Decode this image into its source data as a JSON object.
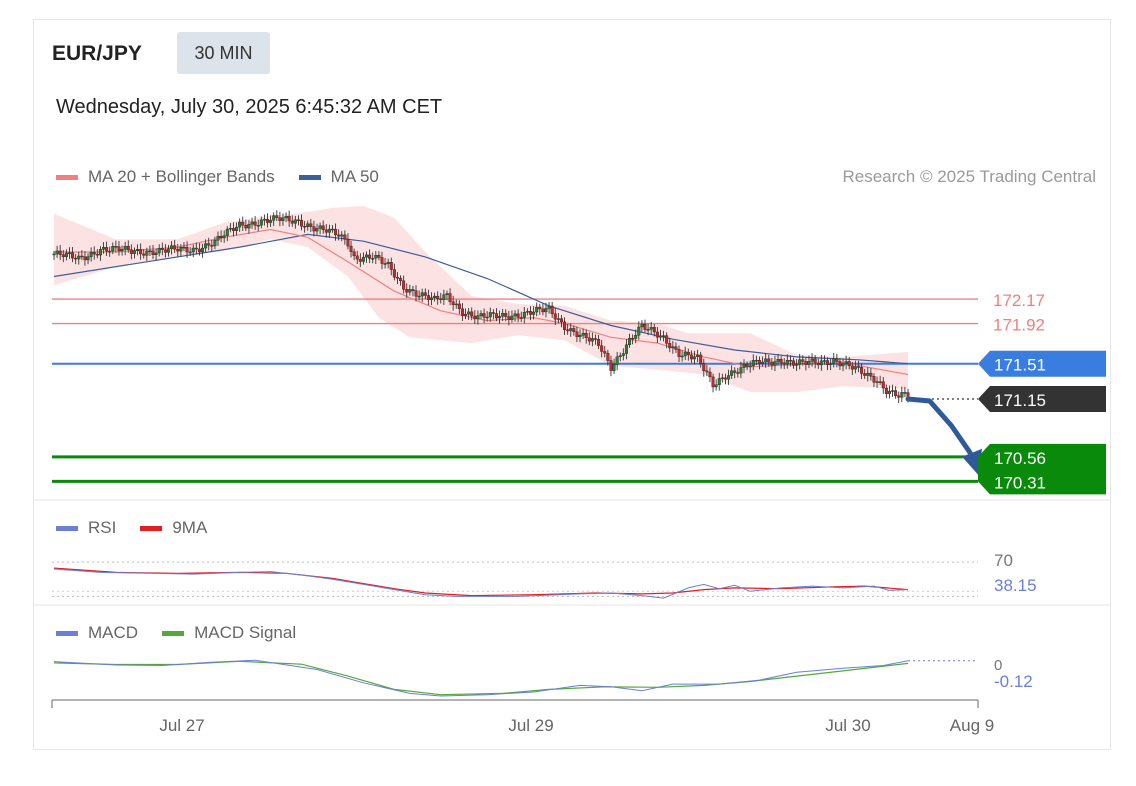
{
  "header": {
    "symbol": "EUR/JPY",
    "timeframe": "30 MIN",
    "datetime": "Wednesday, July 30, 2025 6:45:32 AM CET",
    "credit": "Research © 2025 Trading Central"
  },
  "colors": {
    "ma20": "#f08080",
    "band": "#fde0e2",
    "ma50": "#3a5f9a",
    "resistance": "#f08080",
    "pivot": "#3a7de0",
    "support": "#0a8a0a",
    "current": "#333333",
    "rsi": "#6b7fd7",
    "rsi_ma": "#e02020",
    "macd": "#6b7fd7",
    "macd_signal": "#55a83a",
    "arrow": "#2f5a9a"
  },
  "chart_data": [
    {
      "type": "candlestick",
      "title": "EUR/JPY 30 MIN",
      "legend": [
        "MA 20 + Bollinger Bands",
        "MA 50"
      ],
      "ylim": [
        170.15,
        173.15
      ],
      "x_ticks": [
        "Jul 27",
        "Jul 29",
        "Jul 30",
        "Aug 9"
      ],
      "close_path": [
        [
          0,
          172.63
        ],
        [
          8,
          172.58
        ],
        [
          15,
          172.68
        ],
        [
          25,
          172.66
        ],
        [
          35,
          172.66
        ],
        [
          45,
          172.68
        ],
        [
          52,
          172.75
        ],
        [
          60,
          172.93
        ],
        [
          66,
          172.96
        ],
        [
          73,
          172.98
        ],
        [
          79,
          172.97
        ],
        [
          84,
          172.9
        ],
        [
          88,
          172.86
        ],
        [
          92,
          172.82
        ],
        [
          95,
          172.75
        ],
        [
          97,
          172.6
        ],
        [
          103,
          172.6
        ],
        [
          108,
          172.5
        ],
        [
          113,
          172.3
        ],
        [
          118,
          172.22
        ],
        [
          123,
          172.15
        ],
        [
          127,
          172.2
        ],
        [
          132,
          172.05
        ],
        [
          137,
          171.98
        ],
        [
          145,
          172.0
        ],
        [
          152,
          172.02
        ],
        [
          160,
          172.06
        ],
        [
          165,
          171.9
        ],
        [
          170,
          171.8
        ],
        [
          176,
          171.7
        ],
        [
          180,
          171.48
        ],
        [
          186,
          171.75
        ],
        [
          190,
          171.88
        ],
        [
          197,
          171.78
        ],
        [
          202,
          171.62
        ],
        [
          208,
          171.55
        ],
        [
          213,
          171.3
        ],
        [
          217,
          171.4
        ],
        [
          222,
          171.45
        ],
        [
          228,
          171.53
        ],
        [
          235,
          171.55
        ],
        [
          240,
          171.5
        ],
        [
          247,
          171.53
        ],
        [
          252,
          171.55
        ],
        [
          257,
          171.48
        ],
        [
          262,
          171.4
        ],
        [
          266,
          171.35
        ],
        [
          269,
          171.25
        ],
        [
          273,
          171.18
        ],
        [
          276,
          171.18
        ]
      ],
      "ma20": [
        [
          0,
          172.65
        ],
        [
          20,
          172.65
        ],
        [
          40,
          172.7
        ],
        [
          55,
          172.8
        ],
        [
          70,
          172.88
        ],
        [
          82,
          172.8
        ],
        [
          95,
          172.55
        ],
        [
          110,
          172.25
        ],
        [
          125,
          172.05
        ],
        [
          140,
          171.95
        ],
        [
          155,
          171.98
        ],
        [
          165,
          171.92
        ],
        [
          180,
          171.78
        ],
        [
          195,
          171.72
        ],
        [
          210,
          171.58
        ],
        [
          225,
          171.48
        ],
        [
          240,
          171.5
        ],
        [
          255,
          171.52
        ],
        [
          276,
          171.4
        ]
      ],
      "ma50": [
        [
          0,
          172.4
        ],
        [
          30,
          172.55
        ],
        [
          60,
          172.7
        ],
        [
          82,
          172.83
        ],
        [
          100,
          172.76
        ],
        [
          120,
          172.6
        ],
        [
          140,
          172.38
        ],
        [
          160,
          172.1
        ],
        [
          180,
          171.9
        ],
        [
          200,
          171.76
        ],
        [
          220,
          171.65
        ],
        [
          240,
          171.58
        ],
        [
          260,
          171.55
        ],
        [
          276,
          171.51
        ]
      ],
      "bollinger_upper": [
        [
          0,
          173.04
        ],
        [
          20,
          172.78
        ],
        [
          40,
          172.78
        ],
        [
          55,
          172.95
        ],
        [
          70,
          173.02
        ],
        [
          80,
          173.05
        ],
        [
          90,
          173.1
        ],
        [
          100,
          173.12
        ],
        [
          110,
          173.0
        ],
        [
          120,
          172.65
        ],
        [
          135,
          172.2
        ],
        [
          150,
          172.12
        ],
        [
          165,
          172.1
        ],
        [
          180,
          171.95
        ],
        [
          195,
          171.92
        ],
        [
          205,
          171.82
        ],
        [
          215,
          171.82
        ],
        [
          225,
          171.82
        ],
        [
          240,
          171.6
        ],
        [
          255,
          171.58
        ],
        [
          276,
          171.63
        ]
      ],
      "bollinger_lower": [
        [
          0,
          172.31
        ],
        [
          20,
          172.5
        ],
        [
          40,
          172.6
        ],
        [
          55,
          172.66
        ],
        [
          70,
          172.78
        ],
        [
          82,
          172.7
        ],
        [
          95,
          172.4
        ],
        [
          105,
          171.98
        ],
        [
          115,
          171.78
        ],
        [
          125,
          171.75
        ],
        [
          135,
          171.72
        ],
        [
          150,
          171.8
        ],
        [
          165,
          171.75
        ],
        [
          180,
          171.49
        ],
        [
          195,
          171.45
        ],
        [
          210,
          171.4
        ],
        [
          225,
          171.22
        ],
        [
          240,
          171.22
        ],
        [
          255,
          171.28
        ],
        [
          276,
          171.25
        ]
      ],
      "levels": [
        {
          "label": "172.17",
          "value": 172.17,
          "kind": "resistance"
        },
        {
          "label": "171.92",
          "value": 171.92,
          "kind": "resistance"
        },
        {
          "label": "171.51",
          "value": 171.51,
          "kind": "pivot"
        },
        {
          "label": "171.15",
          "value": 171.15,
          "kind": "current"
        },
        {
          "label": "170.56",
          "value": 170.56,
          "kind": "support"
        },
        {
          "label": "170.31",
          "value": 170.31,
          "kind": "support"
        }
      ],
      "forecast_arrow": [
        [
          276,
          171.15
        ],
        [
          283,
          171.13
        ],
        [
          290,
          170.88
        ],
        [
          298,
          170.5
        ]
      ]
    },
    {
      "type": "line",
      "title": "RSI",
      "legend": [
        "RSI",
        "9MA"
      ],
      "ylim": [
        20,
        90
      ],
      "reference_lines": [
        70,
        30
      ],
      "last_value": "38.15",
      "tick_label": "70",
      "rsi": [
        [
          0,
          62
        ],
        [
          15,
          58
        ],
        [
          30,
          57
        ],
        [
          45,
          56
        ],
        [
          60,
          58
        ],
        [
          70,
          59
        ],
        [
          80,
          55
        ],
        [
          90,
          50
        ],
        [
          100,
          44
        ],
        [
          110,
          38
        ],
        [
          120,
          32
        ],
        [
          130,
          30
        ],
        [
          150,
          30
        ],
        [
          170,
          33
        ],
        [
          180,
          34
        ],
        [
          190,
          31
        ],
        [
          197,
          28
        ],
        [
          205,
          40
        ],
        [
          210,
          44
        ],
        [
          215,
          39
        ],
        [
          220,
          43
        ],
        [
          225,
          36
        ],
        [
          235,
          40
        ],
        [
          245,
          42
        ],
        [
          255,
          40
        ],
        [
          265,
          42
        ],
        [
          270,
          37
        ],
        [
          276,
          38
        ]
      ],
      "rsi_ma": [
        [
          0,
          63
        ],
        [
          20,
          58
        ],
        [
          40,
          57
        ],
        [
          60,
          58
        ],
        [
          75,
          57
        ],
        [
          90,
          51
        ],
        [
          100,
          45
        ],
        [
          110,
          39
        ],
        [
          120,
          34
        ],
        [
          135,
          31
        ],
        [
          155,
          32
        ],
        [
          175,
          34
        ],
        [
          190,
          33
        ],
        [
          200,
          34
        ],
        [
          210,
          38
        ],
        [
          220,
          40
        ],
        [
          235,
          39
        ],
        [
          250,
          41
        ],
        [
          262,
          42
        ],
        [
          276,
          38
        ]
      ]
    },
    {
      "type": "line",
      "title": "MACD",
      "legend": [
        "MACD",
        "MACD Signal"
      ],
      "ylim": [
        -1.6,
        0.4
      ],
      "last_value": "-0.12",
      "tick_label": "0",
      "macd": [
        [
          0,
          -0.15
        ],
        [
          20,
          -0.28
        ],
        [
          35,
          -0.3
        ],
        [
          50,
          -0.18
        ],
        [
          65,
          -0.1
        ],
        [
          85,
          -0.45
        ],
        [
          100,
          -0.95
        ],
        [
          115,
          -1.35
        ],
        [
          125,
          -1.45
        ],
        [
          140,
          -1.4
        ],
        [
          155,
          -1.3
        ],
        [
          170,
          -1.05
        ],
        [
          180,
          -1.1
        ],
        [
          190,
          -1.25
        ],
        [
          200,
          -1.0
        ],
        [
          215,
          -1.0
        ],
        [
          228,
          -0.85
        ],
        [
          240,
          -0.55
        ],
        [
          255,
          -0.4
        ],
        [
          268,
          -0.3
        ],
        [
          276,
          -0.12
        ]
      ],
      "macd_signal": [
        [
          0,
          -0.2
        ],
        [
          20,
          -0.26
        ],
        [
          40,
          -0.26
        ],
        [
          60,
          -0.14
        ],
        [
          80,
          -0.25
        ],
        [
          95,
          -0.7
        ],
        [
          110,
          -1.2
        ],
        [
          125,
          -1.4
        ],
        [
          145,
          -1.35
        ],
        [
          160,
          -1.2
        ],
        [
          178,
          -1.1
        ],
        [
          195,
          -1.12
        ],
        [
          210,
          -1.05
        ],
        [
          225,
          -0.9
        ],
        [
          240,
          -0.7
        ],
        [
          255,
          -0.5
        ],
        [
          270,
          -0.3
        ],
        [
          276,
          -0.22
        ]
      ]
    }
  ]
}
